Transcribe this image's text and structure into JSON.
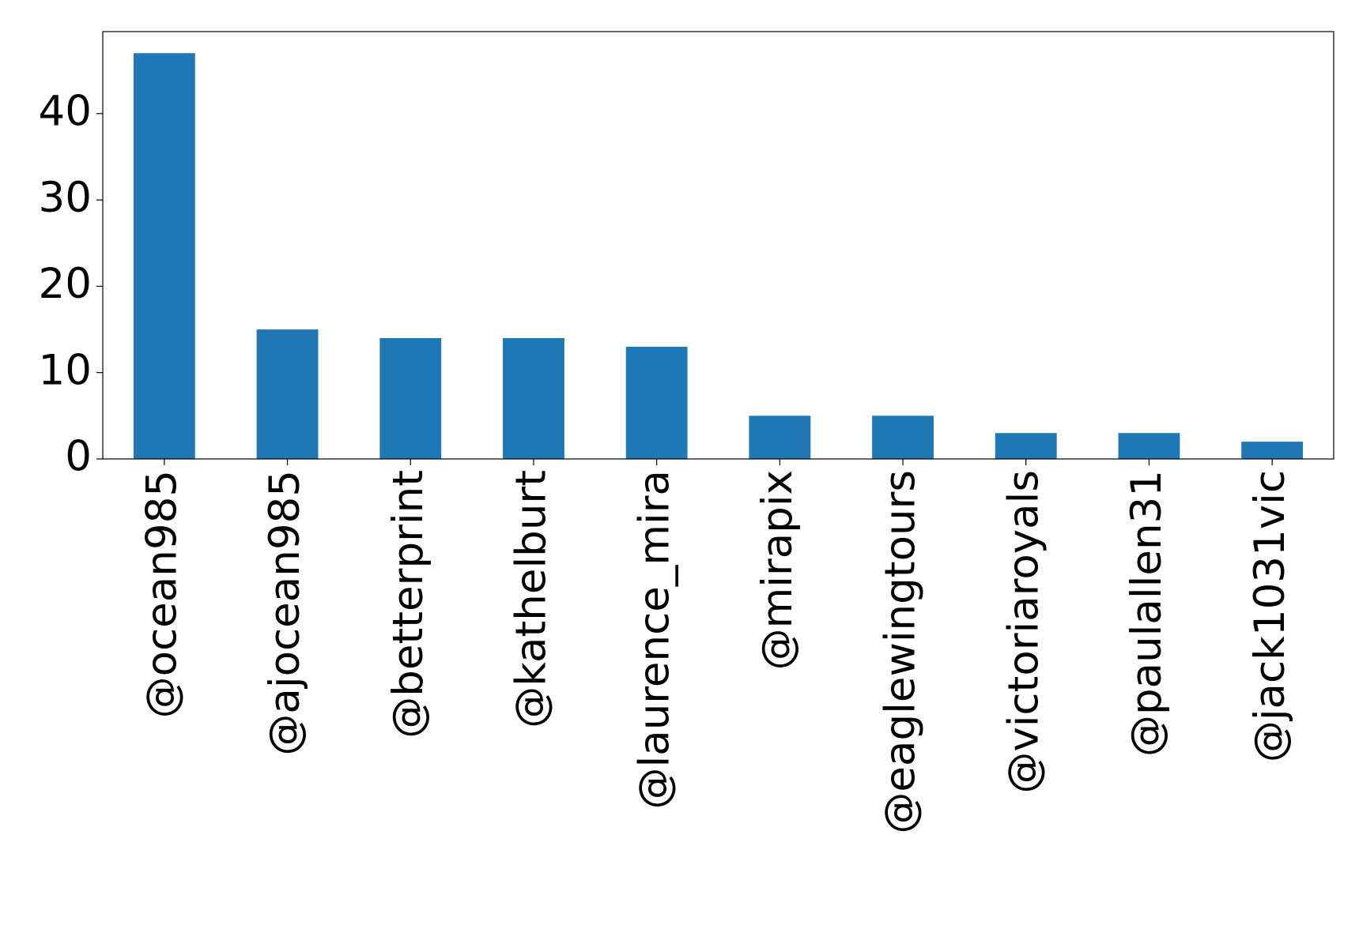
{
  "chart_data": {
    "type": "bar",
    "categories": [
      "@ocean985",
      "@ajocean985",
      "@betterprint",
      "@kathelburt",
      "@laurence_mira",
      "@mirapix",
      "@eaglewingtours",
      "@victoriaroyals",
      "@paulallen31",
      "@jack1031vic"
    ],
    "values": [
      47,
      15,
      14,
      14,
      13,
      5,
      5,
      3,
      3,
      2
    ],
    "color": "#1f77b4",
    "ylim": [
      0,
      49.5
    ],
    "yticks": [
      0,
      10,
      20,
      30,
      40
    ],
    "grid": false
  }
}
